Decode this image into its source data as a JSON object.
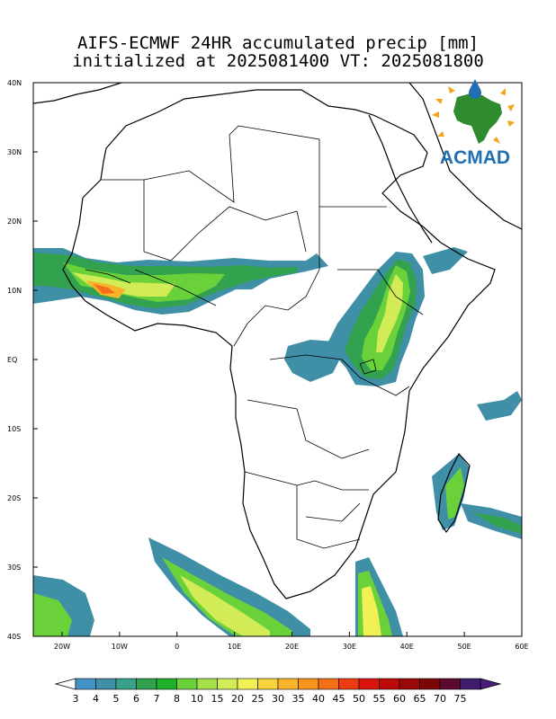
{
  "title": {
    "line1": "AIFS-ECMWF 24HR accumulated precip [mm]",
    "line2": "initialized at 2025081400 VT: 2025081800"
  },
  "map": {
    "lon_range": [
      -25,
      60
    ],
    "lat_range": [
      -40,
      40
    ],
    "lat_labels": [
      "40N",
      "30N",
      "20N",
      "10N",
      "EQ",
      "10S",
      "20S",
      "30S",
      "40S"
    ],
    "lon_labels": [
      "20W",
      "10W",
      "0",
      "10E",
      "20E",
      "30E",
      "40E",
      "50E",
      "60E"
    ]
  },
  "logo": {
    "text": "ACMAD"
  },
  "colorbar": {
    "labels": [
      "3",
      "4",
      "5",
      "6",
      "7",
      "8",
      "10",
      "15",
      "20",
      "25",
      "30",
      "35",
      "40",
      "45",
      "50",
      "55",
      "60",
      "65",
      "70",
      "75"
    ],
    "colors": [
      "#4292c6",
      "#3f8fa6",
      "#3aa08a",
      "#33a24f",
      "#1fb02a",
      "#6ad13b",
      "#a3e04a",
      "#d2ec57",
      "#f1f055",
      "#f7d33d",
      "#f8b52b",
      "#f8951f",
      "#f56f16",
      "#ee3b0f",
      "#d9140b",
      "#bc0a0a",
      "#9a0707",
      "#7c0505",
      "#5d0a2f",
      "#3f1d6d"
    ]
  }
}
